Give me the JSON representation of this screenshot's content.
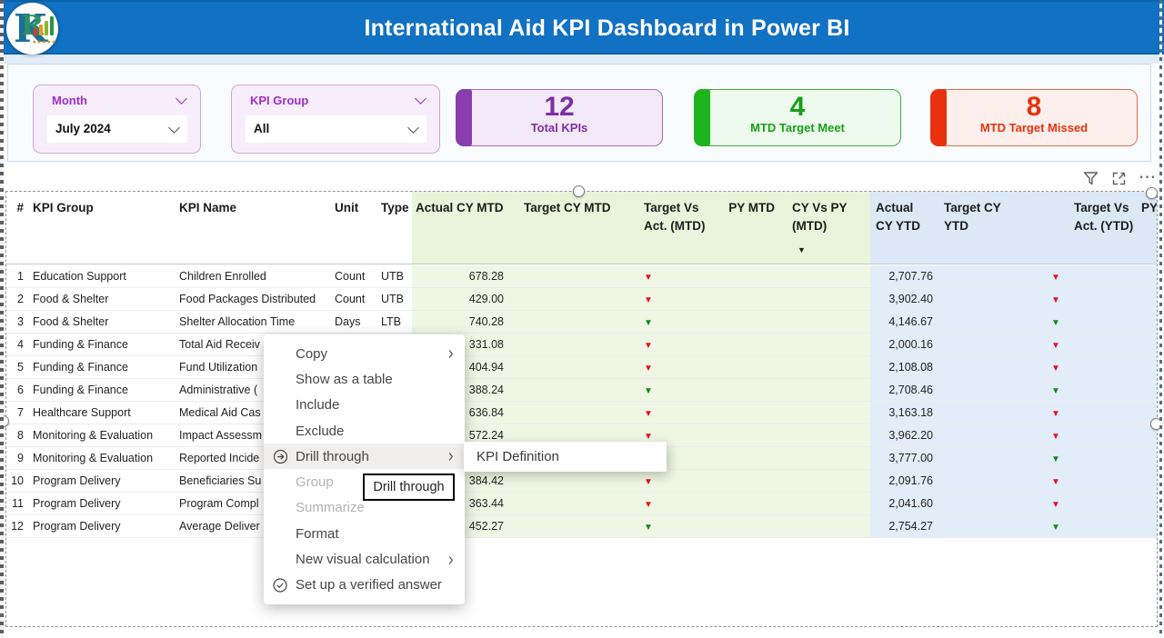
{
  "header": {
    "title": "International Aid KPI Dashboard in Power BI",
    "logo_letter": "K",
    "logo_letter2": "R",
    "logo_stars": "★★★★★"
  },
  "filters": {
    "month": {
      "label": "Month",
      "value": "July 2024"
    },
    "kpi_group": {
      "label": "KPI Group",
      "value": "All"
    }
  },
  "cards": [
    {
      "value": "12",
      "label": "Total KPIs",
      "accent": "#8a3dad"
    },
    {
      "value": "4",
      "label": "MTD Target Meet",
      "accent": "#1db31d"
    },
    {
      "value": "8",
      "label": "MTD Target Missed",
      "accent": "#e93110"
    }
  ],
  "table": {
    "columns": [
      "#",
      "KPI Group",
      "KPI Name",
      "Unit",
      "Type",
      "Actual CY MTD",
      "Target CY MTD",
      "Target Vs Act. (MTD)",
      "PY MTD",
      "CY Vs PY (MTD)",
      "Actual CY YTD",
      "Target CY YTD",
      "Target Vs Act. (YTD)",
      "PY"
    ],
    "sorted_column": "CY Vs PY (MTD)",
    "rows": [
      {
        "n": "1",
        "group": "Education Support",
        "name": "Children Enrolled",
        "unit": "Count",
        "type": "UTB",
        "actual_mtd": "678.28",
        "tva_mtd": "red",
        "actual_ytd": "2,707.76",
        "tva_ytd": "red"
      },
      {
        "n": "2",
        "group": "Food & Shelter",
        "name": "Food Packages Distributed",
        "unit": "Count",
        "type": "UTB",
        "actual_mtd": "429.00",
        "tva_mtd": "red",
        "actual_ytd": "3,902.40",
        "tva_ytd": "red"
      },
      {
        "n": "3",
        "group": "Food & Shelter",
        "name": "Shelter Allocation Time",
        "unit": "Days",
        "type": "LTB",
        "actual_mtd": "740.28",
        "tva_mtd": "green",
        "actual_ytd": "4,146.67",
        "tva_ytd": "green"
      },
      {
        "n": "4",
        "group": "Funding & Finance",
        "name": "Total Aid Receiv",
        "unit": "",
        "type": "",
        "actual_mtd": "331.08",
        "tva_mtd": "red",
        "actual_ytd": "2,000.16",
        "tva_ytd": "red"
      },
      {
        "n": "5",
        "group": "Funding & Finance",
        "name": "Fund Utilization",
        "unit": "",
        "type": "",
        "actual_mtd": "404.94",
        "tva_mtd": "red",
        "actual_ytd": "2,108.08",
        "tva_ytd": "red"
      },
      {
        "n": "6",
        "group": "Funding & Finance",
        "name": "Administrative (",
        "unit": "",
        "type": "",
        "actual_mtd": "388.24",
        "tva_mtd": "green",
        "actual_ytd": "2,708.46",
        "tva_ytd": "green"
      },
      {
        "n": "7",
        "group": "Healthcare Support",
        "name": "Medical Aid Cas",
        "unit": "",
        "type": "",
        "actual_mtd": "636.84",
        "tva_mtd": "red",
        "actual_ytd": "3,163.18",
        "tva_ytd": "red"
      },
      {
        "n": "8",
        "group": "Monitoring & Evaluation",
        "name": "Impact Assessm",
        "unit": "",
        "type": "",
        "actual_mtd": "572.24",
        "tva_mtd": "red",
        "actual_ytd": "3,962.20",
        "tva_ytd": "red"
      },
      {
        "n": "9",
        "group": "Monitoring & Evaluation",
        "name": "Reported Incide",
        "unit": "",
        "type": "",
        "actual_mtd": "",
        "tva_mtd": "none",
        "actual_ytd": "3,777.00",
        "tva_ytd": "green"
      },
      {
        "n": "10",
        "group": "Program Delivery",
        "name": "Beneficiaries Su",
        "unit": "",
        "type": "",
        "actual_mtd": "384.42",
        "tva_mtd": "red",
        "actual_ytd": "2,091.76",
        "tva_ytd": "red"
      },
      {
        "n": "11",
        "group": "Program Delivery",
        "name": "Program Compl",
        "unit": "",
        "type": "",
        "actual_mtd": "363.44",
        "tva_mtd": "red",
        "actual_ytd": "2,041.60",
        "tva_ytd": "red"
      },
      {
        "n": "12",
        "group": "Program Delivery",
        "name": "Average Deliver",
        "unit": "",
        "type": "",
        "actual_mtd": "452.27",
        "tva_mtd": "green",
        "actual_ytd": "2,754.27",
        "tva_ytd": "green"
      }
    ]
  },
  "context_menu": {
    "items": [
      {
        "label": "Copy",
        "chevron": true
      },
      {
        "label": "Show as a table"
      },
      {
        "label": "Include"
      },
      {
        "label": "Exclude"
      },
      {
        "label": "Drill through",
        "icon": "drill-through",
        "chevron": true,
        "highlighted": true
      },
      {
        "label": "Group",
        "disabled": true
      },
      {
        "label": "Summarize",
        "disabled": true
      },
      {
        "label": "Format"
      },
      {
        "label": "New visual calculation",
        "chevron": true
      },
      {
        "label": "Set up a verified answer",
        "icon": "verified"
      }
    ]
  },
  "submenu": {
    "item": "KPI Definition"
  },
  "tooltip": {
    "text": "Drill through"
  },
  "icons": {
    "filter": "funnel",
    "focus_mode": "expand",
    "more_options": "⋯",
    "chevron_right": "›",
    "triangle_down": "▼",
    "sort_desc": "▼"
  },
  "colors": {
    "title_bar": "#1171c2",
    "mtd_section_bg": "#eaf4da",
    "ytd_section_bg": "#dce8f6",
    "positive": "#15891a",
    "negative": "#e81123"
  }
}
